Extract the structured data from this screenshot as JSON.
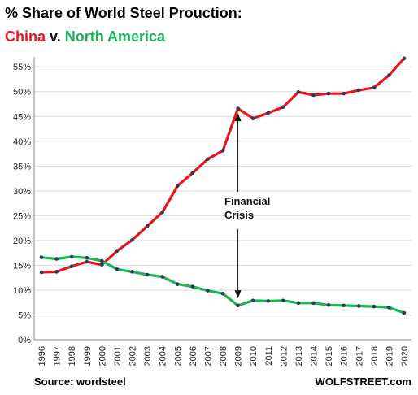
{
  "colors": {
    "china": "#e8141c",
    "north_america": "#19b556",
    "marker": "#2b3a55",
    "grid": "#d9d9d9",
    "axis": "#888888"
  },
  "chart_data": {
    "type": "line",
    "title": "% Share of World Steel Prouction:",
    "subtitle_parts": [
      "China",
      " v. ",
      "North America"
    ],
    "ylim": [
      0,
      57
    ],
    "y_ticks": [
      0,
      5,
      10,
      15,
      20,
      25,
      30,
      35,
      40,
      45,
      50,
      55
    ],
    "y_unit": "%",
    "grid": true,
    "x": [
      "1996",
      "1997",
      "1998",
      "1999",
      "2000",
      "2001",
      "2002",
      "2003",
      "2004",
      "2005",
      "2006",
      "2007",
      "2008",
      "2009",
      "2010",
      "2011",
      "2012",
      "2013",
      "2014",
      "2015",
      "2016",
      "2017",
      "2018",
      "2019",
      "2020"
    ],
    "series": [
      {
        "name": "China",
        "color": "#e8141c",
        "values": [
          13.6,
          13.7,
          14.8,
          15.7,
          15.1,
          17.9,
          20.1,
          22.9,
          25.7,
          31.0,
          33.6,
          36.4,
          38.1,
          46.6,
          44.6,
          45.7,
          46.9,
          49.9,
          49.3,
          49.6,
          49.6,
          50.3,
          50.8,
          53.3,
          56.7
        ]
      },
      {
        "name": "North America",
        "color": "#19b556",
        "values": [
          16.6,
          16.3,
          16.7,
          16.5,
          15.9,
          14.2,
          13.7,
          13.1,
          12.7,
          11.2,
          10.7,
          9.9,
          9.3,
          6.9,
          7.9,
          7.8,
          7.9,
          7.4,
          7.4,
          7.0,
          6.9,
          6.8,
          6.7,
          6.5,
          5.4
        ]
      }
    ],
    "annotation": {
      "lines": [
        "Financial",
        "Crisis"
      ],
      "x": "2009",
      "arrow_top": 46,
      "arrow_bottom": 8
    },
    "source": "Source: wordsteel",
    "brand": "WOLFSTREET.com"
  }
}
